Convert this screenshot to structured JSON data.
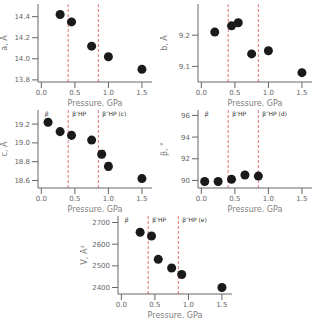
{
  "chart_data": [
    {
      "type": "scatter",
      "xlabel": "Pressure, GPa",
      "ylabel": "a, Å",
      "xlim": [
        -0.05,
        1.65
      ],
      "ylim": [
        13.78,
        14.52
      ],
      "xticks": [
        {
          "value": 0.0,
          "label": "0.0"
        },
        0.5,
        {
          "value": 1.0,
          "label": "1.0"
        },
        1.5
      ],
      "yticks": [
        13.8,
        {
          "value": 14.0,
          "label": "14.0"
        },
        14.2,
        14.4
      ],
      "grid": false,
      "series": [
        {
          "color": "#1a1a1a",
          "marker": "circle",
          "x": [
            0.28,
            0.45,
            0.75,
            1.0,
            1.5
          ],
          "values": [
            14.42,
            14.35,
            14.12,
            14.02,
            13.9
          ],
          "yerr": [
            0.0,
            0.0,
            0.0,
            0.0,
            0.0
          ]
        }
      ],
      "annotations": [
        {
          "type": "vline",
          "x": 0.4,
          "color": "#e05050",
          "line_style": "dashed"
        },
        {
          "type": "vline",
          "x": 0.85,
          "color": "#e05050",
          "line_style": "dashed"
        }
      ]
    },
    {
      "type": "scatter",
      "xlabel": "Pressure, GPa",
      "ylabel": "b, Å",
      "xlim": [
        -0.05,
        1.65
      ],
      "ylim": [
        9.05,
        9.3
      ],
      "xticks": [
        {
          "value": 0.0,
          "label": "0.0"
        },
        0.5,
        {
          "value": 1.0,
          "label": "1.0"
        },
        1.5
      ],
      "yticks": [
        9.1,
        9.2
      ],
      "grid": false,
      "series": [
        {
          "color": "#1a1a1a",
          "marker": "circle",
          "x": [
            0.2,
            0.45,
            0.55,
            0.75,
            1.0,
            1.5
          ],
          "values": [
            9.21,
            9.23,
            9.24,
            9.14,
            9.15,
            9.08
          ],
          "yerr": [
            0.0,
            0.0,
            0.0,
            0.0,
            0.0,
            0.0
          ]
        }
      ],
      "annotations": [
        {
          "type": "vline",
          "x": 0.4,
          "color": "#e05050",
          "line_style": "dashed"
        },
        {
          "type": "vline",
          "x": 0.85,
          "color": "#e05050",
          "line_style": "dashed"
        }
      ]
    },
    {
      "type": "scatter",
      "xlabel": "Pressure, GPa",
      "ylabel": "c, Å",
      "xlim": [
        -0.05,
        1.65
      ],
      "ylim": [
        18.52,
        19.35
      ],
      "xticks": [
        {
          "value": 0.0,
          "label": "0.0"
        },
        0.5,
        {
          "value": 1.0,
          "label": "1.0"
        },
        1.5
      ],
      "yticks": [
        18.6,
        18.8,
        {
          "value": 19.0,
          "label": "19.0"
        },
        19.2
      ],
      "grid": false,
      "series": [
        {
          "color": "#1a1a1a",
          "marker": "circle",
          "x": [
            0.1,
            0.28,
            0.45,
            0.75,
            0.9,
            1.0,
            1.5
          ],
          "values": [
            19.22,
            19.12,
            19.08,
            19.03,
            18.88,
            18.75,
            18.62
          ],
          "yerr": [
            0.0,
            0.0,
            0.03,
            0.0,
            0.04,
            0.04,
            0.03
          ]
        }
      ],
      "annotations": [
        {
          "type": "vline",
          "x": 0.4,
          "color": "#e05050",
          "line_style": "dashed"
        },
        {
          "type": "vline",
          "x": 0.85,
          "color": "#e05050",
          "line_style": "dashed"
        },
        {
          "type": "text",
          "x": 0.02,
          "text": "β"
        },
        {
          "type": "text",
          "x": 0.43,
          "text": "β’HP"
        },
        {
          "type": "text",
          "x": 0.88,
          "text": "β″HP (c)"
        }
      ]
    },
    {
      "type": "scatter",
      "xlabel": "Pressure, GPa",
      "ylabel": "β, °",
      "xlim": [
        -0.05,
        1.65
      ],
      "ylim": [
        89.3,
        96.5
      ],
      "xticks": [
        {
          "value": 0.0,
          "label": "0.0"
        },
        0.5,
        {
          "value": 1.0,
          "label": "1.0"
        },
        1.5
      ],
      "yticks": [
        90,
        92,
        94,
        96
      ],
      "grid": false,
      "series": [
        {
          "color": "#1a1a1a",
          "marker": "circle",
          "x": [
            0.05,
            0.25,
            0.45,
            0.65,
            0.85
          ],
          "values": [
            89.9,
            89.9,
            90.1,
            90.5,
            90.4
          ],
          "yerr": [
            0.0,
            0.0,
            0.0,
            0.0,
            0.0
          ]
        }
      ],
      "annotations": [
        {
          "type": "vline",
          "x": 0.4,
          "color": "#e05050",
          "line_style": "dashed"
        },
        {
          "type": "vline",
          "x": 0.85,
          "color": "#e05050",
          "line_style": "dashed"
        },
        {
          "type": "text",
          "x": 0.02,
          "text": "β"
        },
        {
          "type": "text",
          "x": 0.43,
          "text": "β’HP"
        },
        {
          "type": "text",
          "x": 0.88,
          "text": "β″HP (d)"
        }
      ]
    },
    {
      "type": "scatter",
      "xlabel": "Pressure, GPa",
      "ylabel": "V, Å³",
      "xlim": [
        -0.05,
        1.65
      ],
      "ylim": [
        2370,
        2730
      ],
      "xticks": [
        {
          "value": 0.0,
          "label": "0.0"
        },
        0.5,
        {
          "value": 1.0,
          "label": "1.0"
        },
        1.5
      ],
      "yticks": [
        2400,
        2500,
        2600,
        2700
      ],
      "grid": false,
      "series": [
        {
          "color": "#1a1a1a",
          "marker": "circle",
          "x": [
            0.28,
            0.45,
            0.55,
            0.75,
            0.9,
            1.5
          ],
          "values": [
            2655,
            2638,
            2530,
            2490,
            2460,
            2400
          ],
          "yerr": [
            0.0,
            0.0,
            0.0,
            0.0,
            0.0,
            0.0
          ]
        }
      ],
      "annotations": [
        {
          "type": "vline",
          "x": 0.4,
          "color": "#e05050",
          "line_style": "dashed"
        },
        {
          "type": "vline",
          "x": 0.85,
          "color": "#e05050",
          "line_style": "dashed"
        },
        {
          "type": "text",
          "x": 0.02,
          "text": "β"
        },
        {
          "type": "text",
          "x": 0.43,
          "text": "β’HP"
        },
        {
          "type": "text",
          "x": 0.88,
          "text": "β″HP (e)"
        }
      ]
    }
  ]
}
